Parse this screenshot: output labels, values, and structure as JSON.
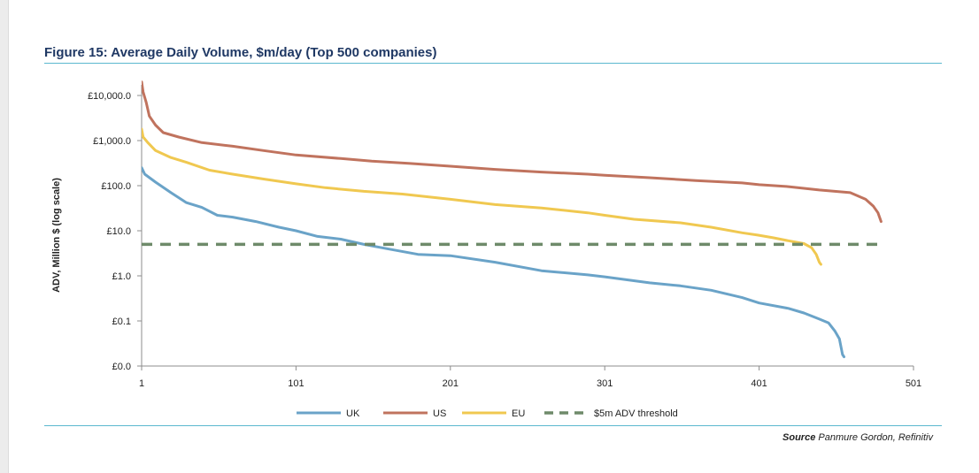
{
  "figure": {
    "title": "Figure 15: Average Daily Volume, $m/day (Top 500 companies)",
    "source_label": "Source",
    "source_text": "Panmure Gordon, Refinitiv"
  },
  "chart_data": {
    "type": "line",
    "title": "Figure 15: Average Daily Volume, $m/day (Top 500 companies)",
    "xlabel": "",
    "ylabel": "ADV, Million $ (log scale)",
    "y_scale": "log",
    "ylim": [
      0.01,
      10000
    ],
    "xlim": [
      1,
      501
    ],
    "x_ticks": [
      1,
      101,
      201,
      301,
      401,
      501
    ],
    "x_tick_labels": [
      "1",
      "101",
      "201",
      "301",
      "401",
      "501"
    ],
    "y_ticks": [
      0.01,
      0.1,
      1,
      10,
      100,
      1000,
      10000
    ],
    "y_tick_labels": [
      "£0.0",
      "£0.1",
      "£1.0",
      "£10.0",
      "£100.0",
      "£1,000.0",
      "£10,000.0"
    ],
    "grid": false,
    "legend_position": "bottom",
    "series": [
      {
        "name": "UK",
        "color": "#6aa3c8",
        "dash": "solid",
        "points": [
          [
            1,
            250
          ],
          [
            3,
            180
          ],
          [
            10,
            120
          ],
          [
            20,
            70
          ],
          [
            30,
            42
          ],
          [
            40,
            33
          ],
          [
            50,
            22
          ],
          [
            60,
            20
          ],
          [
            75,
            16
          ],
          [
            90,
            12
          ],
          [
            101,
            10
          ],
          [
            115,
            7.5
          ],
          [
            130,
            6.5
          ],
          [
            145,
            5
          ],
          [
            160,
            4
          ],
          [
            180,
            3
          ],
          [
            201,
            2.8
          ],
          [
            230,
            2
          ],
          [
            260,
            1.3
          ],
          [
            290,
            1.05
          ],
          [
            301,
            0.95
          ],
          [
            330,
            0.7
          ],
          [
            350,
            0.6
          ],
          [
            370,
            0.48
          ],
          [
            390,
            0.33
          ],
          [
            401,
            0.25
          ],
          [
            420,
            0.19
          ],
          [
            430,
            0.15
          ],
          [
            440,
            0.11
          ],
          [
            446,
            0.09
          ],
          [
            450,
            0.06
          ],
          [
            453,
            0.04
          ],
          [
            455,
            0.018
          ],
          [
            456,
            0.016
          ]
        ]
      },
      {
        "name": "US",
        "color": "#c0735e",
        "dash": "solid",
        "points": [
          [
            1,
            20000
          ],
          [
            2,
            12000
          ],
          [
            4,
            7000
          ],
          [
            6,
            3500
          ],
          [
            10,
            2200
          ],
          [
            15,
            1500
          ],
          [
            25,
            1200
          ],
          [
            40,
            900
          ],
          [
            60,
            750
          ],
          [
            80,
            600
          ],
          [
            101,
            480
          ],
          [
            130,
            400
          ],
          [
            150,
            350
          ],
          [
            175,
            310
          ],
          [
            201,
            270
          ],
          [
            230,
            230
          ],
          [
            260,
            200
          ],
          [
            290,
            180
          ],
          [
            301,
            170
          ],
          [
            330,
            150
          ],
          [
            360,
            130
          ],
          [
            390,
            115
          ],
          [
            401,
            105
          ],
          [
            420,
            95
          ],
          [
            440,
            80
          ],
          [
            460,
            70
          ],
          [
            470,
            50
          ],
          [
            475,
            35
          ],
          [
            478,
            25
          ],
          [
            480,
            16
          ]
        ]
      },
      {
        "name": "EU",
        "color": "#f0c850",
        "dash": "solid",
        "points": [
          [
            1,
            1800
          ],
          [
            2,
            1200
          ],
          [
            5,
            900
          ],
          [
            10,
            600
          ],
          [
            20,
            420
          ],
          [
            30,
            330
          ],
          [
            45,
            220
          ],
          [
            60,
            180
          ],
          [
            80,
            140
          ],
          [
            101,
            110
          ],
          [
            120,
            90
          ],
          [
            145,
            75
          ],
          [
            170,
            65
          ],
          [
            201,
            50
          ],
          [
            230,
            38
          ],
          [
            260,
            32
          ],
          [
            290,
            25
          ],
          [
            301,
            22
          ],
          [
            320,
            18
          ],
          [
            350,
            15
          ],
          [
            370,
            12
          ],
          [
            390,
            9
          ],
          [
            400,
            8
          ],
          [
            410,
            7
          ],
          [
            420,
            6
          ],
          [
            430,
            5.2
          ],
          [
            435,
            4.2
          ],
          [
            438,
            3
          ],
          [
            440,
            2
          ],
          [
            441,
            1.8
          ]
        ]
      },
      {
        "name": "$5m ADV threshold",
        "color": "#6e8a6a",
        "dash": "dashed",
        "points": [
          [
            1,
            5
          ],
          [
            478,
            5
          ]
        ]
      }
    ]
  }
}
